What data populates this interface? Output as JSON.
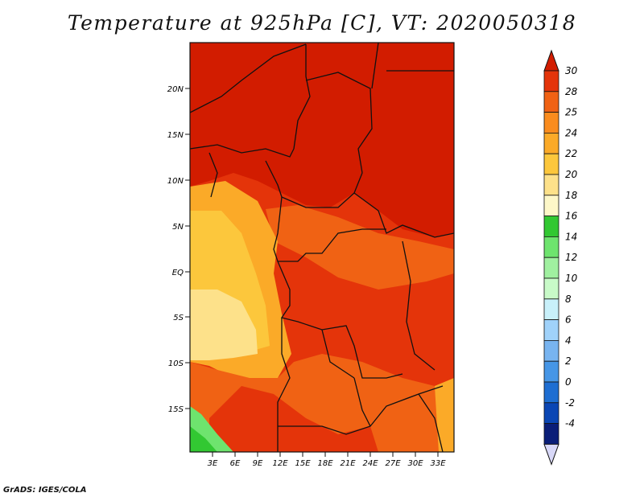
{
  "title": "Temperature at 925hPa [C], VT: 2020050318",
  "credit": "GrADS: IGES/COLA",
  "map": {
    "lat_labels": [
      "20N",
      "15N",
      "10N",
      "5N",
      "EQ",
      "5S",
      "10S",
      "15S"
    ],
    "lon_labels": [
      "3E",
      "6E",
      "9E",
      "12E",
      "15E",
      "18E",
      "21E",
      "24E",
      "27E",
      "30E",
      "33E"
    ]
  },
  "colorbar": {
    "labels": [
      "30",
      "28",
      "25",
      "24",
      "22",
      "20",
      "18",
      "16",
      "14",
      "12",
      "10",
      "8",
      "6",
      "4",
      "2",
      "0",
      "-2",
      "-4"
    ],
    "colors": [
      "#d21c00",
      "#e4340a",
      "#f06214",
      "#fa8c1e",
      "#fbaa28",
      "#fcc73c",
      "#fde18a",
      "#fdf7c8",
      "#32c832",
      "#6ee46e",
      "#a0f0a0",
      "#c8fac8",
      "#c8f0fa",
      "#a0d2fa",
      "#78b4f0",
      "#4696e6",
      "#1e6ed2",
      "#0a46b4",
      "#0a1e78",
      "#d8d8f8"
    ]
  }
}
